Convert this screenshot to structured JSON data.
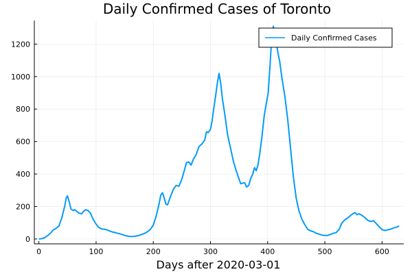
{
  "chart_data": {
    "type": "line",
    "title": "Daily Confirmed Cases of Toronto",
    "xlabel": "Days after 2020-03-01",
    "ylabel": "",
    "xlim": [
      -8,
      638
    ],
    "ylim": [
      -30,
      1345
    ],
    "xticks": [
      0,
      100,
      200,
      300,
      400,
      500,
      600
    ],
    "yticks": [
      0,
      200,
      400,
      600,
      800,
      1000,
      1200
    ],
    "grid": true,
    "legend_position": "top-right",
    "series": [
      {
        "name": "Daily Confirmed Cases",
        "color": "#009AFA",
        "points": [
          [
            0,
            0
          ],
          [
            5,
            2
          ],
          [
            10,
            8
          ],
          [
            15,
            20
          ],
          [
            20,
            35
          ],
          [
            25,
            55
          ],
          [
            30,
            65
          ],
          [
            35,
            80
          ],
          [
            40,
            130
          ],
          [
            45,
            200
          ],
          [
            48,
            255
          ],
          [
            50,
            265
          ],
          [
            53,
            230
          ],
          [
            56,
            185
          ],
          [
            60,
            175
          ],
          [
            63,
            180
          ],
          [
            67,
            168
          ],
          [
            70,
            160
          ],
          [
            75,
            155
          ],
          [
            78,
            170
          ],
          [
            82,
            180
          ],
          [
            86,
            175
          ],
          [
            90,
            160
          ],
          [
            95,
            120
          ],
          [
            100,
            92
          ],
          [
            105,
            70
          ],
          [
            110,
            62
          ],
          [
            115,
            60
          ],
          [
            120,
            55
          ],
          [
            125,
            47
          ],
          [
            130,
            42
          ],
          [
            135,
            38
          ],
          [
            140,
            33
          ],
          [
            145,
            28
          ],
          [
            150,
            22
          ],
          [
            155,
            18
          ],
          [
            160,
            15
          ],
          [
            165,
            16
          ],
          [
            170,
            18
          ],
          [
            175,
            22
          ],
          [
            180,
            28
          ],
          [
            185,
            35
          ],
          [
            190,
            45
          ],
          [
            195,
            60
          ],
          [
            200,
            85
          ],
          [
            205,
            140
          ],
          [
            210,
            215
          ],
          [
            213,
            270
          ],
          [
            216,
            285
          ],
          [
            219,
            255
          ],
          [
            222,
            215
          ],
          [
            225,
            210
          ],
          [
            230,
            260
          ],
          [
            235,
            305
          ],
          [
            240,
            330
          ],
          [
            245,
            325
          ],
          [
            250,
            370
          ],
          [
            255,
            430
          ],
          [
            258,
            470
          ],
          [
            262,
            475
          ],
          [
            266,
            455
          ],
          [
            270,
            490
          ],
          [
            275,
            520
          ],
          [
            280,
            570
          ],
          [
            285,
            585
          ],
          [
            290,
            610
          ],
          [
            293,
            660
          ],
          [
            296,
            655
          ],
          [
            300,
            675
          ],
          [
            303,
            730
          ],
          [
            306,
            810
          ],
          [
            309,
            880
          ],
          [
            312,
            960
          ],
          [
            315,
            1020
          ],
          [
            318,
            955
          ],
          [
            321,
            860
          ],
          [
            325,
            770
          ],
          [
            330,
            640
          ],
          [
            335,
            560
          ],
          [
            340,
            480
          ],
          [
            345,
            420
          ],
          [
            350,
            370
          ],
          [
            353,
            340
          ],
          [
            357,
            345
          ],
          [
            360,
            345
          ],
          [
            363,
            320
          ],
          [
            367,
            330
          ],
          [
            370,
            370
          ],
          [
            374,
            400
          ],
          [
            377,
            440
          ],
          [
            380,
            420
          ],
          [
            383,
            455
          ],
          [
            386,
            520
          ],
          [
            390,
            630
          ],
          [
            394,
            760
          ],
          [
            398,
            840
          ],
          [
            401,
            900
          ],
          [
            404,
            1060
          ],
          [
            407,
            1230
          ],
          [
            410,
            1310
          ],
          [
            412,
            1275
          ],
          [
            415,
            1215
          ],
          [
            418,
            1145
          ],
          [
            421,
            1095
          ],
          [
            425,
            990
          ],
          [
            430,
            880
          ],
          [
            435,
            740
          ],
          [
            440,
            560
          ],
          [
            445,
            380
          ],
          [
            450,
            250
          ],
          [
            455,
            170
          ],
          [
            460,
            120
          ],
          [
            465,
            88
          ],
          [
            470,
            60
          ],
          [
            475,
            50
          ],
          [
            480,
            45
          ],
          [
            485,
            35
          ],
          [
            490,
            30
          ],
          [
            495,
            24
          ],
          [
            500,
            22
          ],
          [
            505,
            22
          ],
          [
            510,
            28
          ],
          [
            515,
            35
          ],
          [
            520,
            40
          ],
          [
            525,
            60
          ],
          [
            530,
            100
          ],
          [
            535,
            118
          ],
          [
            540,
            130
          ],
          [
            545,
            145
          ],
          [
            550,
            158
          ],
          [
            553,
            162
          ],
          [
            556,
            150
          ],
          [
            560,
            155
          ],
          [
            565,
            145
          ],
          [
            570,
            132
          ],
          [
            575,
            115
          ],
          [
            580,
            108
          ],
          [
            585,
            112
          ],
          [
            590,
            95
          ],
          [
            595,
            75
          ],
          [
            600,
            58
          ],
          [
            605,
            52
          ],
          [
            610,
            57
          ],
          [
            615,
            60
          ],
          [
            620,
            68
          ],
          [
            625,
            72
          ],
          [
            630,
            80
          ]
        ]
      }
    ]
  }
}
